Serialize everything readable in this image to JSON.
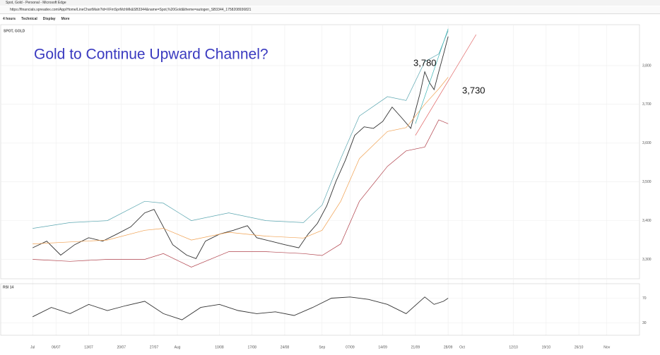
{
  "window": {
    "title": "Spot, Gold - Personal - Microsoft Edge",
    "url": "https://financials.spreadex.com/App/Home/LineChartMain?id=XFmSprMchMk&SB3344&name=Spot,%20Gold&theme=autogen_SB3344_1758208936821"
  },
  "toolbar": [
    "4 hours",
    "Technical",
    "Display",
    "More"
  ],
  "chart_data": [
    {
      "type": "line",
      "symbol": "SPOT, GOLD",
      "title": "Gold to Continue Upward Channel?",
      "annotations": [
        "3,780",
        "3,730"
      ],
      "xlim": [
        -7,
        130
      ],
      "ylim": [
        3250,
        3900
      ],
      "yticks": [
        {
          "value": 3300,
          "label": "3,300"
        },
        {
          "value": 3400,
          "label": "3,400"
        },
        {
          "value": 3500,
          "label": "3,500"
        },
        {
          "value": 3600,
          "label": "3,600"
        },
        {
          "value": 3700,
          "label": "3,700"
        },
        {
          "value": 3800,
          "label": "3,800"
        }
      ],
      "xticks": [
        {
          "value": 0,
          "label": "Jul"
        },
        {
          "value": 5,
          "label": "06/07"
        },
        {
          "value": 12,
          "label": "13/07"
        },
        {
          "value": 19,
          "label": "20/07"
        },
        {
          "value": 26,
          "label": "27/07"
        },
        {
          "value": 31,
          "label": "Aug"
        },
        {
          "value": 40,
          "label": "10/08"
        },
        {
          "value": 47,
          "label": "17/08"
        },
        {
          "value": 54,
          "label": "24/08"
        },
        {
          "value": 62,
          "label": "Sep"
        },
        {
          "value": 68,
          "label": "07/09"
        },
        {
          "value": 75,
          "label": "14/09"
        },
        {
          "value": 82,
          "label": "21/09"
        },
        {
          "value": 89,
          "label": "28/09"
        },
        {
          "value": 92,
          "label": "Oct"
        },
        {
          "value": 103,
          "label": "12/10"
        },
        {
          "value": 110,
          "label": "19/10"
        },
        {
          "value": 117,
          "label": "26/10"
        },
        {
          "value": 123,
          "label": "Nov"
        }
      ],
      "series": [
        {
          "color": "#333333",
          "x": [
            0,
            3,
            6,
            9,
            12,
            15,
            18,
            21,
            24,
            26,
            28,
            30,
            33,
            35,
            37,
            40,
            43,
            46,
            48,
            51,
            54,
            57,
            59,
            61,
            63,
            65,
            67,
            69,
            71,
            73,
            75,
            77,
            79,
            81,
            83,
            84,
            85,
            86,
            87,
            88,
            89
          ],
          "values": [
            3330,
            3347,
            3311,
            3338,
            3356,
            3347,
            3365,
            3384,
            3420,
            3429,
            3384,
            3338,
            3311,
            3302,
            3347,
            3365,
            3375,
            3387,
            3356,
            3347,
            3338,
            3330,
            3365,
            3393,
            3438,
            3502,
            3556,
            3620,
            3642,
            3638,
            3656,
            3693,
            3666,
            3638,
            3729,
            3784,
            3756,
            3738,
            3784,
            3829,
            3875
          ]
        },
        {
          "color": "#5aa6b0",
          "x": [
            0,
            8,
            16,
            24,
            28,
            34,
            42,
            50,
            58,
            62,
            66,
            70,
            76,
            80,
            84,
            87,
            89
          ],
          "values": [
            3380,
            3395,
            3400,
            3450,
            3445,
            3400,
            3420,
            3400,
            3395,
            3440,
            3560,
            3670,
            3720,
            3710,
            3810,
            3830,
            3890
          ]
        },
        {
          "color": "#f0a050",
          "x": [
            0,
            8,
            16,
            24,
            28,
            34,
            42,
            50,
            58,
            62,
            66,
            70,
            76,
            80,
            84,
            87,
            89
          ],
          "values": [
            3340,
            3345,
            3350,
            3375,
            3380,
            3350,
            3370,
            3360,
            3355,
            3375,
            3450,
            3560,
            3630,
            3640,
            3700,
            3740,
            3770
          ]
        },
        {
          "color": "#b0404a",
          "x": [
            0,
            8,
            16,
            24,
            28,
            34,
            42,
            50,
            58,
            62,
            66,
            70,
            76,
            80,
            84,
            87,
            89
          ],
          "values": [
            3300,
            3295,
            3300,
            3300,
            3315,
            3280,
            3320,
            3320,
            3315,
            3310,
            3340,
            3450,
            3540,
            3580,
            3590,
            3660,
            3650
          ]
        },
        {
          "color": "#3cb4b4",
          "x": [
            82,
            89
          ],
          "values": [
            3650,
            3895
          ]
        },
        {
          "color": "#e06060",
          "x": [
            82,
            95
          ],
          "values": [
            3620,
            3880
          ]
        }
      ]
    },
    {
      "type": "line",
      "title": "RSI 14",
      "xlim": [
        -7,
        130
      ],
      "ylim": [
        10,
        90
      ],
      "yticks": [
        30,
        70
      ],
      "series": [
        {
          "color": "#333333",
          "x": [
            0,
            4,
            8,
            12,
            16,
            20,
            24,
            28,
            32,
            36,
            40,
            44,
            48,
            52,
            56,
            60,
            64,
            68,
            72,
            76,
            80,
            84,
            86,
            88,
            89
          ],
          "values": [
            40,
            55,
            45,
            60,
            50,
            58,
            65,
            45,
            35,
            55,
            60,
            50,
            45,
            48,
            42,
            55,
            70,
            72,
            68,
            60,
            45,
            72,
            60,
            65,
            70
          ]
        }
      ]
    }
  ]
}
